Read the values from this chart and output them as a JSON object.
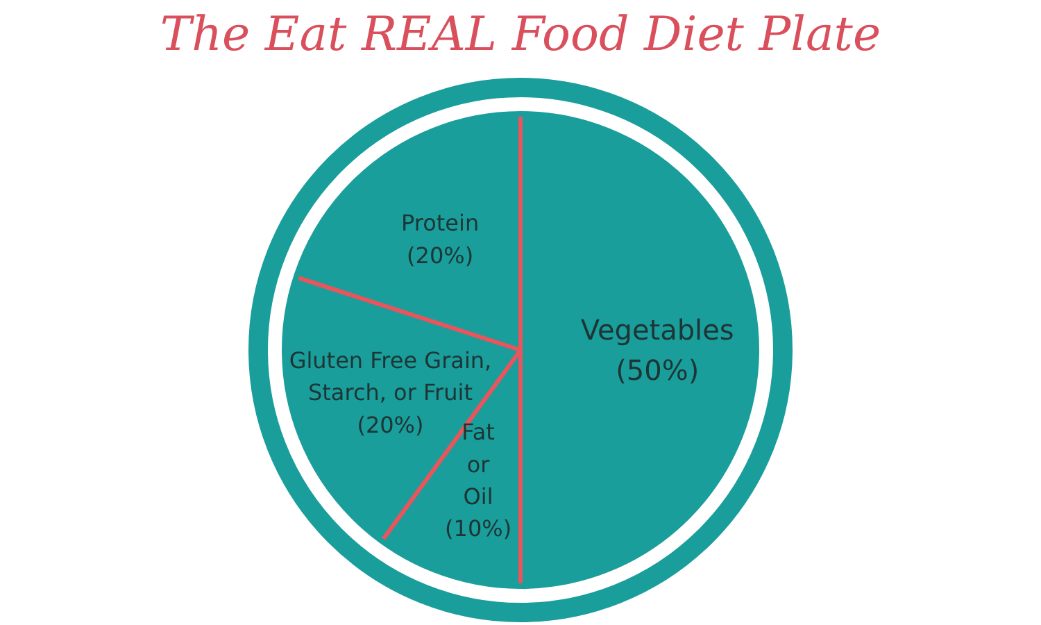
{
  "chart_data": {
    "type": "pie",
    "title": "The Eat REAL Food Diet Plate",
    "categories": [
      "Vegetables",
      "Fat or Oil",
      "Gluten Free Grain, Starch, or Fruit",
      "Protein"
    ],
    "values": [
      50,
      10,
      20,
      20
    ],
    "colors": [
      "#1a9e9b",
      "#1a9e9b",
      "#1a9e9b",
      "#1a9e9b"
    ],
    "value_labels": [
      "(50%)",
      "(10%)",
      "(20%)",
      "(20%)"
    ],
    "legend": false
  }
}
